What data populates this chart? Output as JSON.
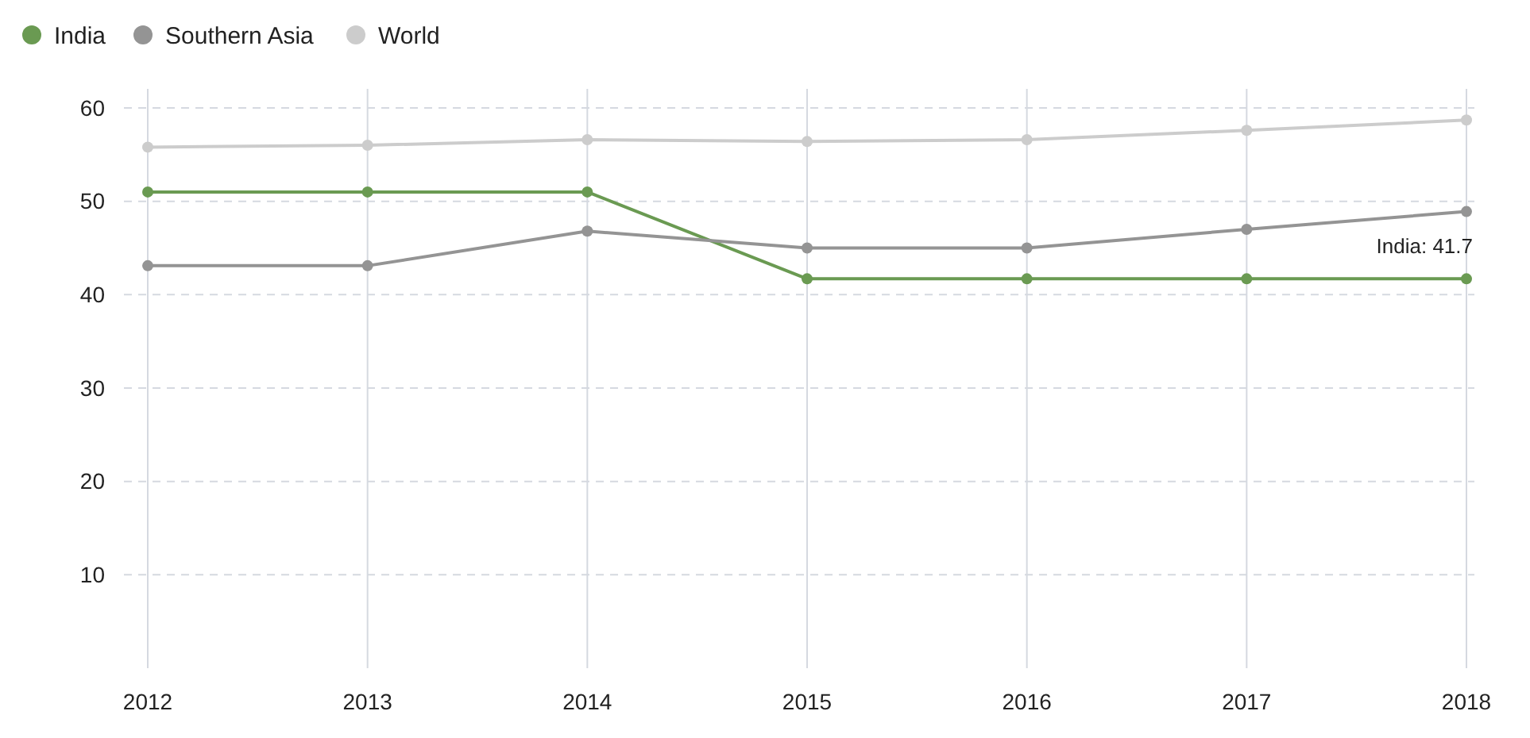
{
  "chart_data": {
    "type": "line",
    "categories": [
      "2012",
      "2013",
      "2014",
      "2015",
      "2016",
      "2017",
      "2018"
    ],
    "series": [
      {
        "name": "India",
        "color": "#6a9a52",
        "values": [
          51,
          51,
          51,
          41.7,
          41.7,
          41.7,
          41.7
        ]
      },
      {
        "name": "Southern Asia",
        "color": "#949494",
        "values": [
          43.1,
          43.1,
          46.8,
          45,
          45,
          47,
          48.9
        ]
      },
      {
        "name": "World",
        "color": "#cccccc",
        "values": [
          55.8,
          56,
          56.6,
          56.4,
          56.6,
          57.6,
          58.7
        ]
      }
    ],
    "ylim": [
      0,
      60
    ],
    "yticks": [
      10,
      20,
      30,
      40,
      50,
      60
    ],
    "grid": true,
    "legend": "top left",
    "marker": "circle",
    "annotations": [
      {
        "text": "India: 41.7",
        "x": "2018",
        "y": 41.7
      }
    ]
  }
}
